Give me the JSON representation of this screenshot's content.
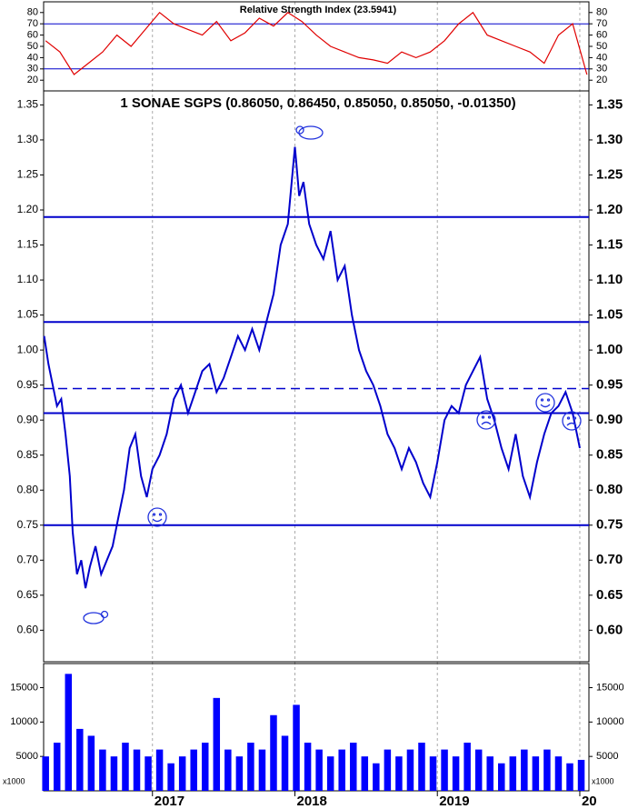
{
  "chart_data": [
    {
      "type": "line",
      "title": "Relative Strength Index (23.5941)",
      "xlim": [
        2016.236,
        2020.064
      ],
      "ylim": [
        10.5,
        89.5
      ],
      "yticks": [
        20,
        30,
        40,
        50,
        60,
        70,
        80
      ],
      "hlines": [
        70,
        30
      ],
      "hline_color": "#0000cc",
      "series": [
        {
          "color": "#e00000",
          "x": [
            2016.25,
            2016.35,
            2016.45,
            2016.55,
            2016.65,
            2016.75,
            2016.85,
            2016.95,
            2017.05,
            2017.15,
            2017.25,
            2017.35,
            2017.45,
            2017.55,
            2017.65,
            2017.75,
            2017.85,
            2017.95,
            2018.05,
            2018.15,
            2018.25,
            2018.35,
            2018.45,
            2018.55,
            2018.65,
            2018.75,
            2018.85,
            2018.95,
            2019.05,
            2019.15,
            2019.25,
            2019.35,
            2019.45,
            2019.55,
            2019.65,
            2019.75,
            2019.85,
            2019.95,
            2020.05
          ],
          "values": [
            55,
            45,
            25,
            35,
            45,
            60,
            50,
            65,
            80,
            70,
            65,
            60,
            72,
            55,
            62,
            75,
            68,
            80,
            72,
            60,
            50,
            45,
            40,
            38,
            35,
            45,
            40,
            45,
            55,
            70,
            80,
            60,
            55,
            50,
            45,
            35,
            60,
            70,
            25
          ]
        }
      ]
    },
    {
      "type": "line",
      "title": "1 SONAE SGPS (0.86050, 0.86450, 0.85050, 0.85050, -0.01350)",
      "xlim": [
        2016.236,
        2020.064
      ],
      "ylim": [
        0.555,
        1.37
      ],
      "yticks": [
        {
          "value": 0.6,
          "label": "0.60"
        },
        {
          "value": 0.65,
          "label": "0.65"
        },
        {
          "value": 0.7,
          "label": "0.70"
        },
        {
          "value": 0.75,
          "label": "0.75"
        },
        {
          "value": 0.8,
          "label": "0.80"
        },
        {
          "value": 0.85,
          "label": "0.85"
        },
        {
          "value": 0.9,
          "label": "0.90"
        },
        {
          "value": 0.95,
          "label": "0.95"
        },
        {
          "value": 1.0,
          "label": "1.00"
        },
        {
          "value": 1.05,
          "label": "1.05"
        },
        {
          "value": 1.1,
          "label": "1.10"
        },
        {
          "value": 1.15,
          "label": "1.15"
        },
        {
          "value": 1.2,
          "label": "1.20"
        },
        {
          "value": 1.25,
          "label": "1.25"
        },
        {
          "value": 1.3,
          "label": "1.30"
        },
        {
          "value": 1.35,
          "label": "1.35"
        }
      ],
      "hlines": [
        1.19,
        1.04,
        0.91,
        0.75
      ],
      "dashed_hlines": [
        0.945
      ],
      "hline_color": "#0000cc",
      "series": [
        {
          "color": "#0000cc",
          "x": [
            2016.24,
            2016.27,
            2016.3,
            2016.33,
            2016.36,
            2016.39,
            2016.42,
            2016.44,
            2016.47,
            2016.5,
            2016.53,
            2016.56,
            2016.6,
            2016.64,
            2016.68,
            2016.72,
            2016.76,
            2016.8,
            2016.84,
            2016.88,
            2016.92,
            2016.96,
            2017.0,
            2017.05,
            2017.1,
            2017.15,
            2017.2,
            2017.25,
            2017.3,
            2017.35,
            2017.4,
            2017.45,
            2017.5,
            2017.55,
            2017.6,
            2017.65,
            2017.7,
            2017.75,
            2017.8,
            2017.85,
            2017.9,
            2017.95,
            2018.0,
            2018.03,
            2018.06,
            2018.1,
            2018.15,
            2018.2,
            2018.25,
            2018.3,
            2018.35,
            2018.4,
            2018.45,
            2018.5,
            2018.55,
            2018.6,
            2018.65,
            2018.7,
            2018.75,
            2018.8,
            2018.85,
            2018.9,
            2018.95,
            2019.0,
            2019.05,
            2019.1,
            2019.15,
            2019.2,
            2019.25,
            2019.3,
            2019.35,
            2019.4,
            2019.45,
            2019.5,
            2019.55,
            2019.6,
            2019.65,
            2019.7,
            2019.75,
            2019.8,
            2019.85,
            2019.9,
            2019.95,
            2020.0
          ],
          "values": [
            1.02,
            0.98,
            0.95,
            0.92,
            0.93,
            0.88,
            0.82,
            0.74,
            0.68,
            0.7,
            0.66,
            0.69,
            0.72,
            0.68,
            0.7,
            0.72,
            0.76,
            0.8,
            0.86,
            0.88,
            0.82,
            0.79,
            0.83,
            0.85,
            0.88,
            0.93,
            0.95,
            0.91,
            0.94,
            0.97,
            0.98,
            0.94,
            0.96,
            0.99,
            1.02,
            1.0,
            1.03,
            1.0,
            1.04,
            1.08,
            1.15,
            1.18,
            1.29,
            1.22,
            1.24,
            1.18,
            1.15,
            1.13,
            1.17,
            1.1,
            1.12,
            1.05,
            1.0,
            0.97,
            0.95,
            0.92,
            0.88,
            0.86,
            0.83,
            0.86,
            0.84,
            0.81,
            0.79,
            0.84,
            0.9,
            0.92,
            0.91,
            0.95,
            0.97,
            0.99,
            0.93,
            0.9,
            0.86,
            0.83,
            0.88,
            0.82,
            0.79,
            0.84,
            0.88,
            0.91,
            0.92,
            0.94,
            0.91,
            0.86
          ]
        }
      ]
    },
    {
      "type": "bar",
      "unit_label": "x1000",
      "xlim": [
        2016.236,
        2020.064
      ],
      "ylim": [
        0,
        18500
      ],
      "yticks": [
        5000,
        10000,
        15000
      ],
      "xticks": [
        2017,
        2018,
        2019,
        {
          "value": 2020,
          "label": "20"
        }
      ],
      "xgrid": true,
      "color": "#0000ff",
      "x": [
        2016.25,
        2016.33,
        2016.41,
        2016.49,
        2016.57,
        2016.65,
        2016.73,
        2016.81,
        2016.89,
        2016.97,
        2017.05,
        2017.13,
        2017.21,
        2017.29,
        2017.37,
        2017.45,
        2017.53,
        2017.61,
        2017.69,
        2017.77,
        2017.85,
        2017.93,
        2018.01,
        2018.09,
        2018.17,
        2018.25,
        2018.33,
        2018.41,
        2018.49,
        2018.57,
        2018.65,
        2018.73,
        2018.81,
        2018.89,
        2018.97,
        2019.05,
        2019.13,
        2019.21,
        2019.29,
        2019.37,
        2019.45,
        2019.53,
        2019.61,
        2019.69,
        2019.77,
        2019.85,
        2019.93,
        2020.01
      ],
      "values": [
        5000,
        7000,
        17000,
        9000,
        8000,
        6000,
        5000,
        7000,
        6000,
        5000,
        6000,
        4000,
        5000,
        6000,
        7000,
        13500,
        6000,
        5000,
        7000,
        6000,
        11000,
        8000,
        12500,
        7000,
        6000,
        5000,
        6000,
        7000,
        5000,
        4000,
        6000,
        5000,
        6000,
        7000,
        5000,
        6000,
        5000,
        7000,
        6000,
        5000,
        4000,
        5000,
        6000,
        5000,
        6000,
        5000,
        4000,
        4500
      ]
    }
  ]
}
